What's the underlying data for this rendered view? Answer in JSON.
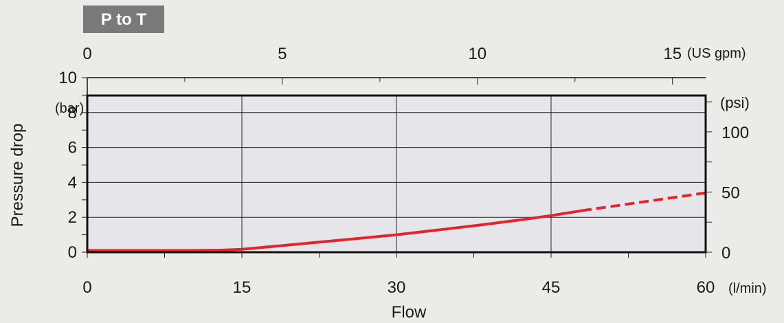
{
  "badge": {
    "label": "P to T",
    "color": "#7a7a7a"
  },
  "chart_data": {
    "type": "line",
    "xlabel": "Flow",
    "ylabel": "Pressure drop",
    "x_unit": "(l/min)",
    "y_unit": "(bar)",
    "x_top_unit": "(US gpm)",
    "y_right_unit": "(psi)",
    "xlim": [
      0,
      60
    ],
    "ylim": [
      0,
      10
    ],
    "x_ticks": [
      0,
      15,
      30,
      45,
      60
    ],
    "y_ticks": [
      0,
      2,
      4,
      6,
      8,
      10
    ],
    "x_top_ticks": [
      0,
      5,
      10,
      15
    ],
    "y_right_ticks": [
      0,
      50,
      100
    ],
    "grid": true,
    "series": [
      {
        "color": "#e3242b",
        "x": [
          0,
          5,
          10,
          13,
          15,
          18,
          22,
          26,
          30,
          34,
          38,
          42,
          45,
          48
        ],
        "y": [
          0.1,
          0.1,
          0.1,
          0.12,
          0.17,
          0.33,
          0.55,
          0.77,
          1.0,
          1.27,
          1.55,
          1.85,
          2.1,
          2.38
        ]
      },
      {
        "color": "#e3242b",
        "line_style": "dashed",
        "x": [
          48,
          52,
          56,
          60
        ],
        "y": [
          2.38,
          2.72,
          3.06,
          3.4
        ]
      }
    ]
  }
}
